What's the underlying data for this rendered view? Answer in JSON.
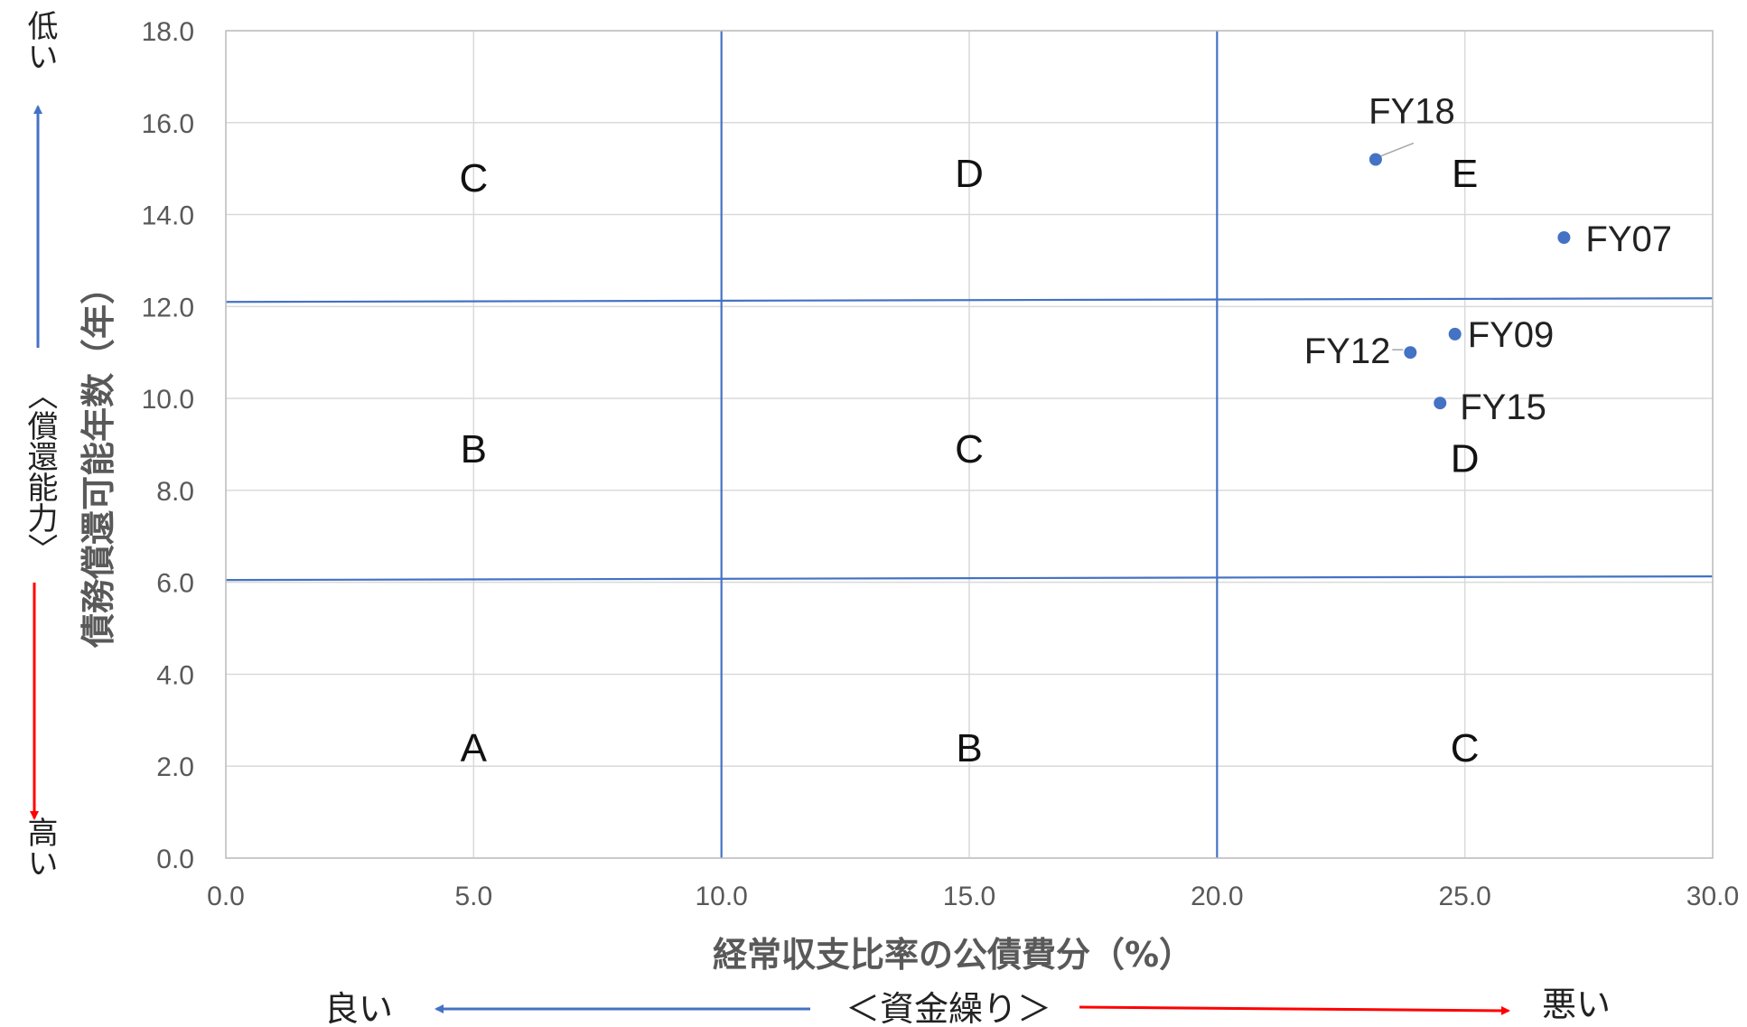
{
  "chart_data": {
    "type": "scatter",
    "title": "",
    "xlabel": "経常収支比率の公債費分（%）",
    "ylabel": "債務償還可能年数（年）",
    "xlim": [
      0,
      30
    ],
    "ylim": [
      0,
      18
    ],
    "x_ticks": [
      "0.0",
      "5.0",
      "10.0",
      "15.0",
      "20.0",
      "25.0",
      "30.0"
    ],
    "y_ticks": [
      "0.0",
      "2.0",
      "4.0",
      "6.0",
      "8.0",
      "10.0",
      "12.0",
      "14.0",
      "16.0",
      "18.0"
    ],
    "grid": true,
    "series": [
      {
        "color": "#4472c4",
        "points": [
          {
            "label": "FY18",
            "x": 23.2,
            "y": 15.2
          },
          {
            "label": "FY07",
            "x": 27.0,
            "y": 13.5
          },
          {
            "label": "FY09",
            "x": 24.8,
            "y": 11.4
          },
          {
            "label": "FY12",
            "x": 23.9,
            "y": 11.0
          },
          {
            "label": "FY15",
            "x": 24.5,
            "y": 9.9
          }
        ]
      }
    ],
    "boundary_lines": {
      "color": "#4472c4",
      "vertical_x": [
        10.0,
        20.0
      ],
      "horizontal_y": [
        12.1,
        6.05
      ]
    },
    "zones": [
      {
        "label": "A",
        "x": 5.0,
        "y": 2.4
      },
      {
        "label": "B",
        "x": 15.0,
        "y": 2.4
      },
      {
        "label": "C",
        "x": 25.0,
        "y": 2.4
      },
      {
        "label": "B",
        "x": 5.0,
        "y": 8.9
      },
      {
        "label": "C",
        "x": 15.0,
        "y": 8.9
      },
      {
        "label": "D",
        "x": 25.0,
        "y": 8.7
      },
      {
        "label": "C",
        "x": 5.0,
        "y": 14.8
      },
      {
        "label": "D",
        "x": 15.0,
        "y": 14.9
      },
      {
        "label": "E",
        "x": 25.0,
        "y": 14.9
      }
    ],
    "annotations": {
      "y_side_label": "〈償還能力〉",
      "y_top": "低い",
      "y_bottom": "高い",
      "x_center": "＜資金繰り＞",
      "x_left": "良い",
      "x_right": "悪い",
      "good_color": "#4472c4",
      "bad_color": "#ff0000"
    }
  }
}
